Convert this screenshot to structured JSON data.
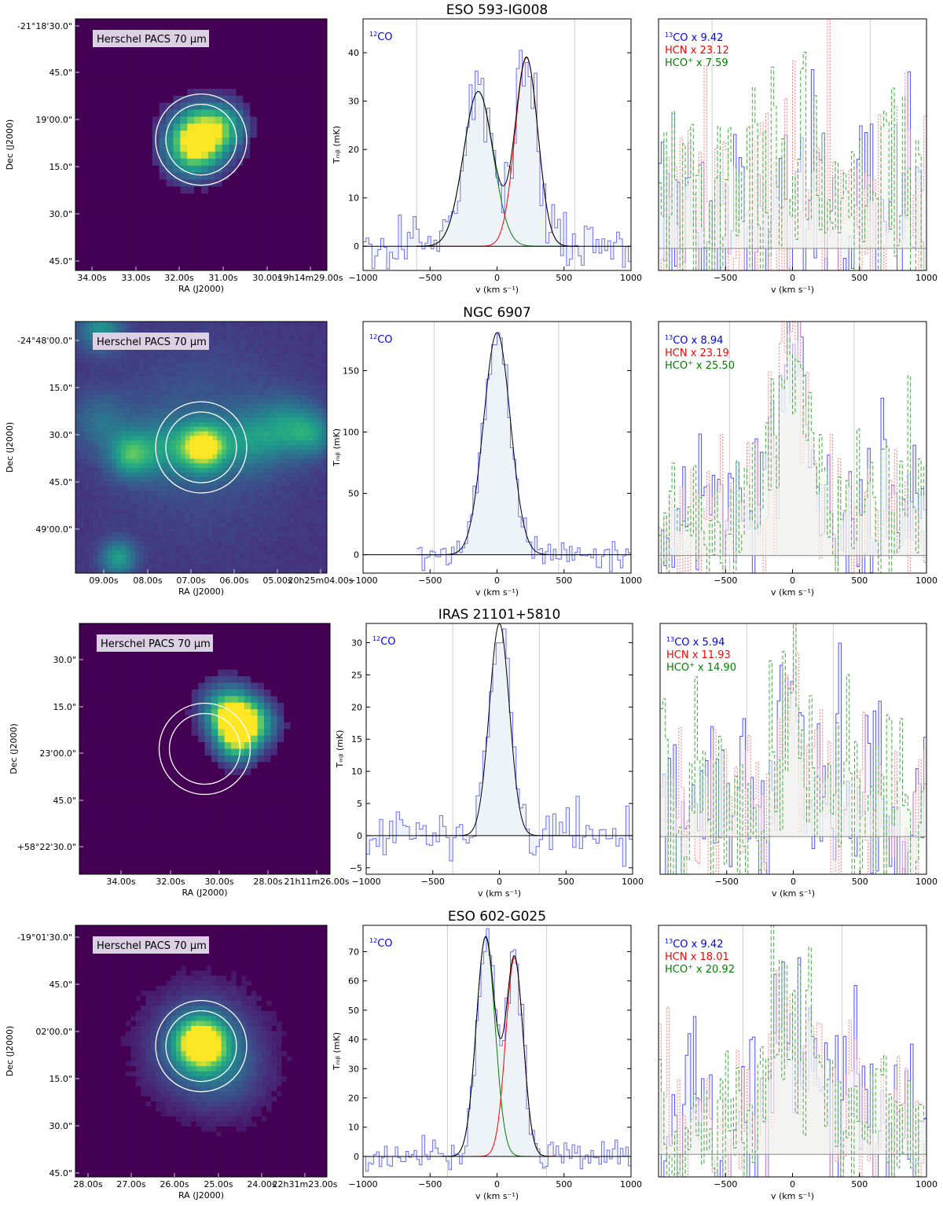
{
  "chart_data": [
    {
      "type": "figure-row",
      "title": "ESO 593-IG008",
      "map": {
        "label": "Herschel PACS 70 μm",
        "xlabel": "RA (J2000)",
        "ylabel": "Dec (J2000)",
        "ra_ticks": [
          "34.00s",
          "33.00s",
          "32.00s",
          "31.00s",
          "30.00s",
          "19h14m29.00s"
        ],
        "dec_ticks": [
          "-21°18'30.0\"",
          "45.0\"",
          "19'00.0\"",
          "15.0\"",
          "30.0\"",
          "45.0\""
        ]
      },
      "co12": {
        "type": "line",
        "legend": "CO",
        "legend_sup": "12",
        "xlabel": "v (km s⁻¹)",
        "ylabel": "Tₘᵦ (mK)",
        "xlim": [
          -1000,
          1000
        ],
        "ylim": [
          -5,
          47
        ],
        "xticks": [
          -1000,
          -500,
          0,
          500,
          1000
        ],
        "yticks": [
          0,
          10,
          20,
          30,
          40
        ],
        "window_lines": [
          -600,
          580
        ],
        "fit_components": [
          {
            "color": "green",
            "amplitude": 32,
            "center": -140,
            "sigma": 110
          },
          {
            "color": "red",
            "amplitude": 39,
            "center": 220,
            "sigma": 85
          }
        ],
        "noise_rms": 3,
        "bin_width": 22,
        "spectrum_start": -1000
      },
      "dense": {
        "xlim": [
          -1000,
          1000
        ],
        "xticks": [
          -500,
          0,
          500,
          1000
        ],
        "window_lines": [
          -600,
          580
        ],
        "legend": [
          {
            "color": "#0000ff",
            "parts": [
              {
                "t": "13",
                "sup": true
              },
              {
                "t": "CO x 9.42"
              }
            ]
          },
          {
            "color": "#ff0000",
            "parts": [
              {
                "t": "HCN  x 23.12"
              }
            ]
          },
          {
            "color": "#008000",
            "parts": [
              {
                "t": "HCO"
              },
              {
                "t": "+",
                "sup": true
              },
              {
                "t": " x 7.59"
              }
            ]
          }
        ]
      }
    },
    {
      "type": "figure-row",
      "title": "NGC 6907",
      "map": {
        "label": "Herschel PACS 70 μm",
        "xlabel": "RA (J2000)",
        "ylabel": "Dec (J2000)",
        "ra_ticks": [
          "09.00s",
          "08.00s",
          "07.00s",
          "06.00s",
          "05.00s",
          "20h25m04.00s"
        ],
        "dec_ticks": [
          "-24°48'00.0\"",
          "15.0\"",
          "30.0\"",
          "45.0\"",
          "49'00.0\""
        ]
      },
      "co12": {
        "type": "line",
        "legend": "CO",
        "legend_sup": "12",
        "xlabel": "v (km s⁻¹)",
        "ylabel": "Tₘᵦ (mK)",
        "xlim": [
          -1000,
          1000
        ],
        "ylim": [
          -15,
          190
        ],
        "xticks": [
          -1000,
          -500,
          0,
          500,
          1000
        ],
        "yticks": [
          0,
          50,
          100,
          150
        ],
        "window_lines": [
          -470,
          460
        ],
        "fit_components": [
          {
            "color": "black",
            "amplitude": 181,
            "center": 0,
            "sigma": 100
          }
        ],
        "noise_rms": 6,
        "bin_width": 20,
        "spectrum_start": -600
      },
      "dense": {
        "xlim": [
          -1000,
          1000
        ],
        "xticks": [
          -500,
          0,
          500,
          1000
        ],
        "window_lines": [
          -470,
          460
        ],
        "legend": [
          {
            "color": "#0000ff",
            "parts": [
              {
                "t": "13",
                "sup": true
              },
              {
                "t": "CO x 8.94"
              }
            ]
          },
          {
            "color": "#ff0000",
            "parts": [
              {
                "t": "HCN  x 23.19"
              }
            ]
          },
          {
            "color": "#008000",
            "parts": [
              {
                "t": "HCO"
              },
              {
                "t": "+",
                "sup": true
              },
              {
                "t": " x 25.50"
              }
            ]
          }
        ]
      }
    },
    {
      "type": "figure-row",
      "title": "IRAS 21101+5810",
      "map": {
        "label": "Herschel PACS 70 μm",
        "xlabel": "RA (J2000)",
        "ylabel": "Dec (J2000)",
        "ra_ticks": [
          "34.00s",
          "32.00s",
          "30.00s",
          "28.00s",
          "21h11m26.00s"
        ],
        "dec_ticks": [
          "30.0\"",
          "15.0\"",
          "23'00.0\"",
          "45.0\"",
          "+58°22'30.0\""
        ]
      },
      "co12": {
        "type": "line",
        "legend": "CO",
        "legend_sup": "12",
        "xlabel": "v (km s⁻¹)",
        "ylabel": "Tₘᵦ (mK)",
        "xlim": [
          -1000,
          1000
        ],
        "ylim": [
          -6,
          33
        ],
        "xticks": [
          -1000,
          -500,
          0,
          500,
          1000
        ],
        "yticks": [
          -5,
          0,
          5,
          10,
          15,
          20,
          25,
          30
        ],
        "window_lines": [
          -350,
          300
        ],
        "fit_components": [
          {
            "color": "black",
            "amplitude": 33,
            "center": 0,
            "sigma": 75
          }
        ],
        "noise_rms": 2.2,
        "bin_width": 25,
        "spectrum_start": -1000
      },
      "dense": {
        "xlim": [
          -1000,
          1000
        ],
        "xticks": [
          -500,
          0,
          500,
          1000
        ],
        "window_lines": [
          -350,
          300
        ],
        "legend": [
          {
            "color": "#0000ff",
            "parts": [
              {
                "t": "13",
                "sup": true
              },
              {
                "t": "CO x 5.94"
              }
            ]
          },
          {
            "color": "#ff0000",
            "parts": [
              {
                "t": "HCN  x 11.93"
              }
            ]
          },
          {
            "color": "#008000",
            "parts": [
              {
                "t": "HCO"
              },
              {
                "t": "+",
                "sup": true
              },
              {
                "t": " x 14.90"
              }
            ]
          }
        ]
      }
    },
    {
      "type": "figure-row",
      "title": "ESO 602-G025",
      "map": {
        "label": "Herschel PACS 70 μm",
        "xlabel": "RA (J2000)",
        "ylabel": "Dec (J2000)",
        "ra_ticks": [
          "28.00s",
          "27.00s",
          "26.00s",
          "25.00s",
          "24.00s",
          "22h31m23.00s"
        ],
        "dec_ticks": [
          "-19°01'30.0\"",
          "45.0\"",
          "02'00.0\"",
          "15.0\"",
          "30.0\"",
          "45.0\""
        ]
      },
      "co12": {
        "type": "line",
        "legend": "CO",
        "legend_sup": "12",
        "xlabel": "v (km s⁻¹)",
        "ylabel": "Tₘᵦ (mK)",
        "xlim": [
          -1000,
          1000
        ],
        "ylim": [
          -7,
          79
        ],
        "xticks": [
          -1000,
          -500,
          0,
          500,
          1000
        ],
        "yticks": [
          0,
          10,
          20,
          30,
          40,
          50,
          60,
          70
        ],
        "window_lines": [
          -370,
          370
        ],
        "fit_components": [
          {
            "color": "green",
            "amplitude": 75,
            "center": -85,
            "sigma": 70
          },
          {
            "color": "red",
            "amplitude": 68,
            "center": 130,
            "sigma": 65
          }
        ],
        "noise_rms": 3,
        "bin_width": 20,
        "spectrum_start": -1000
      },
      "dense": {
        "xlim": [
          -1000,
          1000
        ],
        "xticks": [
          -500,
          0,
          500,
          1000
        ],
        "window_lines": [
          -370,
          370
        ],
        "legend": [
          {
            "color": "#0000ff",
            "parts": [
              {
                "t": "13",
                "sup": true
              },
              {
                "t": "CO x 9.42"
              }
            ]
          },
          {
            "color": "#ff0000",
            "parts": [
              {
                "t": "HCN  x 18.01"
              }
            ]
          },
          {
            "color": "#008000",
            "parts": [
              {
                "t": "HCO"
              },
              {
                "t": "+",
                "sup": true
              },
              {
                "t": " x 20.92"
              }
            ]
          }
        ]
      }
    }
  ]
}
